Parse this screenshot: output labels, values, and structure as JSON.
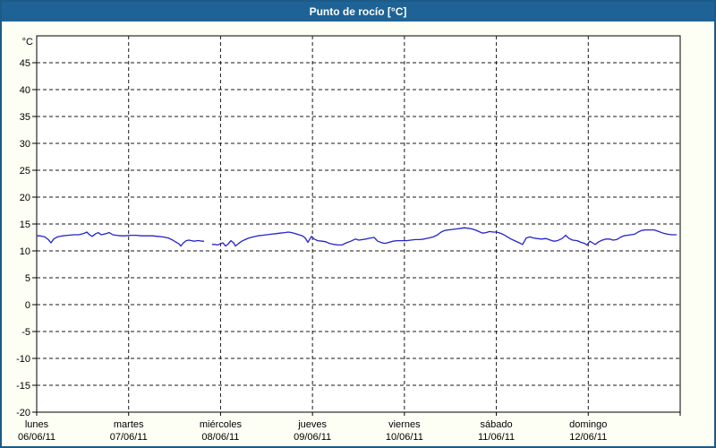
{
  "window": {
    "title": "Punto de rocío [°C]"
  },
  "colors": {
    "frame": "#1c5a88",
    "title_bg": "#1f6396",
    "title_text": "#ffffff",
    "canvas_bg": "#fdfff4",
    "plot_bg": "#ffffff",
    "plot_border": "#000000",
    "grid": "#1a1a1a",
    "tick_text": "#000000",
    "line": "#2323cb"
  },
  "chart_data": {
    "type": "line",
    "title": "Punto de rocío [°C]",
    "y_unit_label": "°C",
    "ylabel": "Punto de rocío",
    "ylim": [
      -20,
      50
    ],
    "ytick_step": 5,
    "yticks": [
      -20,
      -15,
      -10,
      -5,
      0,
      5,
      10,
      15,
      20,
      25,
      30,
      35,
      40,
      45
    ],
    "grid": true,
    "legend": "none",
    "x_axis": {
      "span_days": 7,
      "categories": [
        {
          "day": "lunes",
          "date": "06/06/11"
        },
        {
          "day": "martes",
          "date": "07/06/11"
        },
        {
          "day": "miércoles",
          "date": "08/06/11"
        },
        {
          "day": "jueves",
          "date": "09/06/11"
        },
        {
          "day": "viernes",
          "date": "10/06/11"
        },
        {
          "day": "sábado",
          "date": "11/06/11"
        },
        {
          "day": "domingo",
          "date": "12/06/11"
        }
      ]
    },
    "series": [
      {
        "name": "Punto de rocío",
        "unit": "°C",
        "segments": [
          [
            [
              0.0,
              12.8
            ],
            [
              0.039,
              12.8
            ],
            [
              0.088,
              12.6
            ],
            [
              0.127,
              12.1
            ],
            [
              0.156,
              11.5
            ],
            [
              0.185,
              12.2
            ],
            [
              0.224,
              12.6
            ],
            [
              0.282,
              12.8
            ],
            [
              0.341,
              12.9
            ],
            [
              0.399,
              13.0
            ],
            [
              0.458,
              13.0
            ],
            [
              0.506,
              13.2
            ],
            [
              0.545,
              13.5
            ],
            [
              0.574,
              13.0
            ],
            [
              0.604,
              12.7
            ],
            [
              0.643,
              13.2
            ],
            [
              0.672,
              13.4
            ],
            [
              0.701,
              13.0
            ],
            [
              0.73,
              13.1
            ],
            [
              0.769,
              13.3
            ],
            [
              0.789,
              13.4
            ],
            [
              0.828,
              13.0
            ],
            [
              0.866,
              12.9
            ],
            [
              0.915,
              12.8
            ],
            [
              0.964,
              12.8
            ],
            [
              1.022,
              12.9
            ],
            [
              1.081,
              12.9
            ],
            [
              1.139,
              12.8
            ],
            [
              1.197,
              12.8
            ],
            [
              1.256,
              12.8
            ],
            [
              1.314,
              12.7
            ],
            [
              1.373,
              12.6
            ],
            [
              1.431,
              12.4
            ],
            [
              1.48,
              12.0
            ],
            [
              1.519,
              11.6
            ],
            [
              1.548,
              11.3
            ],
            [
              1.567,
              10.9
            ],
            [
              1.597,
              11.5
            ],
            [
              1.626,
              11.9
            ],
            [
              1.655,
              12.0
            ],
            [
              1.684,
              11.9
            ],
            [
              1.714,
              11.8
            ],
            [
              1.743,
              11.9
            ],
            [
              1.772,
              11.9
            ],
            [
              1.801,
              11.8
            ],
            [
              1.821,
              11.8
            ]
          ],
          [
            [
              1.908,
              11.2
            ],
            [
              1.937,
              11.2
            ],
            [
              1.967,
              11.1
            ],
            [
              1.996,
              11.3
            ],
            [
              2.025,
              11.5
            ],
            [
              2.054,
              10.9
            ],
            [
              2.083,
              11.3
            ],
            [
              2.113,
              11.9
            ],
            [
              2.142,
              11.5
            ],
            [
              2.161,
              10.9
            ],
            [
              2.191,
              11.3
            ],
            [
              2.23,
              11.8
            ],
            [
              2.268,
              12.1
            ],
            [
              2.307,
              12.4
            ],
            [
              2.356,
              12.6
            ],
            [
              2.405,
              12.8
            ],
            [
              2.453,
              12.9
            ],
            [
              2.502,
              13.0
            ],
            [
              2.551,
              13.1
            ],
            [
              2.6,
              13.2
            ],
            [
              2.648,
              13.3
            ],
            [
              2.697,
              13.4
            ],
            [
              2.736,
              13.5
            ],
            [
              2.775,
              13.4
            ],
            [
              2.814,
              13.2
            ],
            [
              2.853,
              13.0
            ],
            [
              2.892,
              12.8
            ],
            [
              2.921,
              12.4
            ],
            [
              2.95,
              11.6
            ],
            [
              2.989,
              12.7
            ],
            [
              3.018,
              12.2
            ],
            [
              3.057,
              11.9
            ],
            [
              3.106,
              11.8
            ],
            [
              3.145,
              11.7
            ],
            [
              3.184,
              11.4
            ],
            [
              3.232,
              11.2
            ],
            [
              3.281,
              11.1
            ],
            [
              3.32,
              11.1
            ],
            [
              3.369,
              11.5
            ],
            [
              3.417,
              11.8
            ],
            [
              3.466,
              12.2
            ],
            [
              3.505,
              12.0
            ],
            [
              3.544,
              12.1
            ],
            [
              3.583,
              12.2
            ],
            [
              3.631,
              12.4
            ],
            [
              3.67,
              12.5
            ],
            [
              3.709,
              11.8
            ],
            [
              3.758,
              11.5
            ],
            [
              3.787,
              11.4
            ],
            [
              3.836,
              11.6
            ],
            [
              3.875,
              11.8
            ],
            [
              3.923,
              11.9
            ],
            [
              3.972,
              11.9
            ],
            [
              4.021,
              11.9
            ],
            [
              4.069,
              12.0
            ],
            [
              4.118,
              12.1
            ],
            [
              4.167,
              12.1
            ],
            [
              4.215,
              12.2
            ],
            [
              4.264,
              12.4
            ],
            [
              4.313,
              12.6
            ],
            [
              4.362,
              13.0
            ],
            [
              4.4,
              13.5
            ],
            [
              4.439,
              13.8
            ],
            [
              4.478,
              13.9
            ],
            [
              4.527,
              14.0
            ],
            [
              4.576,
              14.1
            ],
            [
              4.615,
              14.2
            ],
            [
              4.653,
              14.3
            ],
            [
              4.692,
              14.2
            ],
            [
              4.731,
              14.1
            ],
            [
              4.77,
              13.9
            ],
            [
              4.809,
              13.6
            ],
            [
              4.848,
              13.3
            ],
            [
              4.887,
              13.4
            ],
            [
              4.926,
              13.6
            ],
            [
              4.965,
              13.5
            ],
            [
              5.004,
              13.5
            ],
            [
              5.043,
              13.3
            ],
            [
              5.082,
              13.0
            ],
            [
              5.121,
              12.6
            ],
            [
              5.16,
              12.2
            ],
            [
              5.199,
              11.9
            ],
            [
              5.237,
              11.6
            ],
            [
              5.286,
              11.2
            ],
            [
              5.325,
              12.4
            ],
            [
              5.364,
              12.6
            ],
            [
              5.403,
              12.4
            ],
            [
              5.442,
              12.3
            ],
            [
              5.491,
              12.2
            ],
            [
              5.539,
              12.3
            ],
            [
              5.588,
              12.0
            ],
            [
              5.627,
              11.8
            ],
            [
              5.666,
              11.9
            ],
            [
              5.715,
              12.3
            ],
            [
              5.754,
              12.9
            ],
            [
              5.792,
              12.3
            ],
            [
              5.831,
              12.0
            ],
            [
              5.88,
              11.9
            ],
            [
              5.919,
              11.6
            ],
            [
              5.958,
              11.4
            ],
            [
              5.987,
              11.1
            ],
            [
              6.017,
              11.8
            ],
            [
              6.046,
              11.5
            ],
            [
              6.075,
              11.2
            ],
            [
              6.114,
              11.7
            ],
            [
              6.153,
              12.0
            ],
            [
              6.192,
              12.2
            ],
            [
              6.231,
              12.2
            ],
            [
              6.27,
              12.0
            ],
            [
              6.309,
              12.1
            ],
            [
              6.347,
              12.5
            ],
            [
              6.386,
              12.8
            ],
            [
              6.425,
              12.9
            ],
            [
              6.464,
              13.0
            ],
            [
              6.503,
              13.1
            ],
            [
              6.542,
              13.5
            ],
            [
              6.581,
              13.8
            ],
            [
              6.62,
              13.9
            ],
            [
              6.669,
              13.9
            ],
            [
              6.717,
              13.9
            ],
            [
              6.766,
              13.6
            ],
            [
              6.815,
              13.3
            ],
            [
              6.863,
              13.1
            ],
            [
              6.912,
              13.0
            ],
            [
              6.961,
              13.0
            ]
          ]
        ]
      }
    ]
  }
}
